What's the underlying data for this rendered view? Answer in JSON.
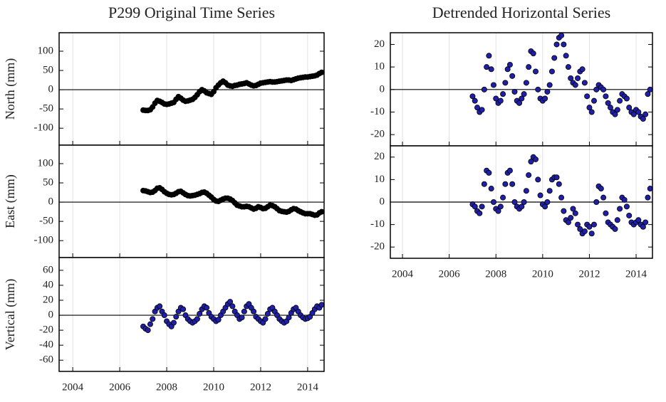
{
  "chart_data": [
    {
      "type": "scatter",
      "title": "P299 Original Time Series",
      "ylabel": "North (mm)",
      "x": [
        2007.0,
        2007.1,
        2007.2,
        2007.3,
        2007.4,
        2007.5,
        2007.6,
        2007.7,
        2007.8,
        2007.9,
        2008.0,
        2008.1,
        2008.2,
        2008.3,
        2008.4,
        2008.5,
        2008.6,
        2008.7,
        2008.8,
        2008.9,
        2009.0,
        2009.1,
        2009.2,
        2009.3,
        2009.4,
        2009.5,
        2009.6,
        2009.7,
        2009.8,
        2009.9,
        2010.0,
        2010.1,
        2010.2,
        2010.3,
        2010.4,
        2010.5,
        2010.6,
        2010.7,
        2010.8,
        2010.9,
        2011.0,
        2011.1,
        2011.2,
        2011.3,
        2011.4,
        2011.5,
        2011.6,
        2011.7,
        2011.8,
        2011.9,
        2012.0,
        2012.1,
        2012.2,
        2012.3,
        2012.4,
        2012.5,
        2012.6,
        2012.7,
        2012.8,
        2012.9,
        2013.0,
        2013.1,
        2013.2,
        2013.3,
        2013.4,
        2013.5,
        2013.6,
        2013.7,
        2013.8,
        2013.9,
        2014.0,
        2014.1,
        2014.2,
        2014.3,
        2014.4,
        2014.5,
        2014.6
      ],
      "series": [
        {
          "color": "#000000",
          "edgecolor": "#000000",
          "values": [
            -53,
            -54,
            -54,
            -52,
            -45,
            -35,
            -28,
            -30,
            -33,
            -37,
            -38,
            -37,
            -35,
            -33,
            -25,
            -18,
            -22,
            -27,
            -30,
            -29,
            -27,
            -25,
            -20,
            -13,
            -5,
            0,
            -3,
            -8,
            -10,
            -12,
            -5,
            5,
            12,
            18,
            22,
            18,
            12,
            10,
            9,
            11,
            12,
            14,
            15,
            16,
            18,
            15,
            12,
            10,
            11,
            14,
            17,
            18,
            19,
            20,
            21,
            20,
            20,
            21,
            22,
            23,
            24,
            25,
            25,
            24,
            26,
            28,
            30,
            31,
            32,
            33,
            33,
            34,
            35,
            36,
            38,
            42,
            45
          ]
        }
      ],
      "xlim": [
        2003.42,
        2014.7
      ],
      "xticks": [
        2004,
        2006,
        2008,
        2010,
        2012,
        2014
      ],
      "ylim": [
        -144,
        148
      ],
      "yticks": [
        -100,
        -50,
        0,
        50,
        100
      ],
      "grid": true
    },
    {
      "type": "scatter",
      "ylabel": "East (mm)",
      "x": [
        2007.0,
        2007.1,
        2007.2,
        2007.3,
        2007.4,
        2007.5,
        2007.6,
        2007.7,
        2007.8,
        2007.9,
        2008.0,
        2008.1,
        2008.2,
        2008.3,
        2008.4,
        2008.5,
        2008.6,
        2008.7,
        2008.8,
        2008.9,
        2009.0,
        2009.1,
        2009.2,
        2009.3,
        2009.4,
        2009.5,
        2009.6,
        2009.7,
        2009.8,
        2009.9,
        2010.0,
        2010.1,
        2010.2,
        2010.3,
        2010.4,
        2010.5,
        2010.6,
        2010.7,
        2010.8,
        2010.9,
        2011.0,
        2011.1,
        2011.2,
        2011.3,
        2011.4,
        2011.5,
        2011.6,
        2011.7,
        2011.8,
        2011.9,
        2012.0,
        2012.1,
        2012.2,
        2012.3,
        2012.4,
        2012.5,
        2012.6,
        2012.7,
        2012.8,
        2012.9,
        2013.0,
        2013.1,
        2013.2,
        2013.3,
        2013.4,
        2013.5,
        2013.6,
        2013.7,
        2013.8,
        2013.9,
        2014.0,
        2014.1,
        2014.2,
        2014.3,
        2014.4,
        2014.5,
        2014.6
      ],
      "series": [
        {
          "color": "#000000",
          "edgecolor": "#000000",
          "values": [
            30,
            29,
            27,
            25,
            26,
            30,
            36,
            37,
            33,
            27,
            23,
            20,
            19,
            20,
            23,
            27,
            28,
            24,
            20,
            17,
            16,
            17,
            18,
            20,
            22,
            25,
            26,
            23,
            18,
            13,
            7,
            3,
            2,
            5,
            8,
            10,
            10,
            8,
            4,
            -2,
            -8,
            -10,
            -12,
            -12,
            -11,
            -12,
            -15,
            -18,
            -16,
            -12,
            -14,
            -17,
            -16,
            -12,
            -8,
            -9,
            -12,
            -17,
            -22,
            -24,
            -25,
            -26,
            -24,
            -20,
            -17,
            -18,
            -22,
            -25,
            -28,
            -30,
            -30,
            -30,
            -32,
            -34,
            -33,
            -28,
            -25
          ]
        }
      ],
      "xlim": [
        2003.42,
        2014.7
      ],
      "xticks": [
        2004,
        2006,
        2008,
        2010,
        2012,
        2014
      ],
      "ylim": [
        -144,
        148
      ],
      "yticks": [
        -100,
        -50,
        0,
        50,
        100
      ],
      "grid": true
    },
    {
      "type": "scatter",
      "ylabel": "Vertical (mm)",
      "x": [
        2007.0,
        2007.1,
        2007.2,
        2007.3,
        2007.4,
        2007.5,
        2007.6,
        2007.7,
        2007.8,
        2007.9,
        2008.0,
        2008.1,
        2008.2,
        2008.3,
        2008.4,
        2008.5,
        2008.6,
        2008.7,
        2008.8,
        2008.9,
        2009.0,
        2009.1,
        2009.2,
        2009.3,
        2009.4,
        2009.5,
        2009.6,
        2009.7,
        2009.8,
        2009.9,
        2010.0,
        2010.1,
        2010.2,
        2010.3,
        2010.4,
        2010.5,
        2010.6,
        2010.7,
        2010.8,
        2010.9,
        2011.0,
        2011.1,
        2011.2,
        2011.3,
        2011.4,
        2011.5,
        2011.6,
        2011.7,
        2011.8,
        2011.9,
        2012.0,
        2012.1,
        2012.2,
        2012.3,
        2012.4,
        2012.5,
        2012.6,
        2012.7,
        2012.8,
        2012.9,
        2013.0,
        2013.1,
        2013.2,
        2013.3,
        2013.4,
        2013.5,
        2013.6,
        2013.7,
        2013.8,
        2013.9,
        2014.0,
        2014.1,
        2014.2,
        2014.3,
        2014.4,
        2014.5,
        2014.6
      ],
      "series": [
        {
          "color": "#1f1fa8",
          "edgecolor": "#000000",
          "values": [
            -15,
            -18,
            -20,
            -12,
            -5,
            5,
            10,
            12,
            5,
            0,
            -8,
            -12,
            -15,
            -10,
            -2,
            5,
            10,
            8,
            0,
            -5,
            -8,
            -10,
            -8,
            -5,
            2,
            8,
            12,
            10,
            3,
            -2,
            -5,
            -8,
            -6,
            0,
            5,
            10,
            15,
            18,
            12,
            5,
            0,
            -5,
            -3,
            5,
            12,
            15,
            10,
            5,
            -2,
            -5,
            -8,
            -10,
            -5,
            2,
            8,
            10,
            5,
            0,
            -5,
            -8,
            -10,
            -8,
            -3,
            3,
            8,
            10,
            5,
            0,
            -3,
            -5,
            -4,
            -2,
            3,
            8,
            12,
            10,
            14
          ]
        }
      ],
      "xlim": [
        2003.42,
        2014.7
      ],
      "xticks": [
        2004,
        2006,
        2008,
        2010,
        2012,
        2014
      ],
      "ylim": [
        -75,
        77
      ],
      "yticks": [
        -60,
        -40,
        -20,
        0,
        20,
        40,
        60
      ],
      "grid": true
    },
    {
      "type": "scatter",
      "title": "Detrended Horizontal Series",
      "x": [
        2007.0,
        2007.1,
        2007.2,
        2007.3,
        2007.4,
        2007.5,
        2007.6,
        2007.7,
        2007.8,
        2007.9,
        2008.0,
        2008.1,
        2008.2,
        2008.3,
        2008.4,
        2008.5,
        2008.6,
        2008.7,
        2008.8,
        2008.9,
        2009.0,
        2009.1,
        2009.2,
        2009.3,
        2009.4,
        2009.5,
        2009.6,
        2009.7,
        2009.8,
        2009.9,
        2010.0,
        2010.1,
        2010.2,
        2010.3,
        2010.4,
        2010.5,
        2010.6,
        2010.7,
        2010.8,
        2010.9,
        2011.0,
        2011.1,
        2011.2,
        2011.3,
        2011.4,
        2011.5,
        2011.6,
        2011.7,
        2011.8,
        2011.9,
        2012.0,
        2012.1,
        2012.2,
        2012.3,
        2012.4,
        2012.5,
        2012.6,
        2012.7,
        2012.8,
        2012.9,
        2013.0,
        2013.1,
        2013.2,
        2013.3,
        2013.4,
        2013.5,
        2013.6,
        2013.7,
        2013.8,
        2013.9,
        2014.0,
        2014.1,
        2014.2,
        2014.3,
        2014.4,
        2014.5,
        2014.6
      ],
      "series": [
        {
          "color": "#1f1fa8",
          "edgecolor": "#000000",
          "values": [
            -3,
            -5,
            -8,
            -10,
            -9,
            0,
            10,
            15,
            9,
            2,
            -4,
            -6,
            -5,
            -2,
            3,
            9,
            11,
            6,
            -1,
            -5,
            -6,
            -4,
            -2,
            3,
            10,
            17,
            16,
            8,
            0,
            -4,
            -5,
            -4,
            -1,
            2,
            8,
            14,
            20,
            23,
            24,
            20,
            15,
            10,
            5,
            3,
            2,
            5,
            8,
            9,
            3,
            -3,
            -8,
            -10,
            -5,
            0,
            2,
            1,
            0,
            -3,
            -6,
            -8,
            -10,
            -11,
            -9,
            -5,
            -2,
            -3,
            -4,
            -8,
            -10,
            -11,
            -9,
            -10,
            -12,
            -13,
            -11,
            -2,
            0
          ]
        }
      ],
      "xlim": [
        2003.48,
        2014.7
      ],
      "xticks": [
        2004,
        2006,
        2008,
        2010,
        2012,
        2014
      ],
      "ylim": [
        -25,
        25.2
      ],
      "yticks": [
        -20,
        -10,
        0,
        10,
        20
      ],
      "grid": true
    },
    {
      "type": "scatter",
      "x": [
        2007.0,
        2007.1,
        2007.2,
        2007.3,
        2007.4,
        2007.5,
        2007.6,
        2007.7,
        2007.8,
        2007.9,
        2008.0,
        2008.1,
        2008.2,
        2008.3,
        2008.4,
        2008.5,
        2008.6,
        2008.7,
        2008.8,
        2008.9,
        2009.0,
        2009.1,
        2009.2,
        2009.3,
        2009.4,
        2009.5,
        2009.6,
        2009.7,
        2009.8,
        2009.9,
        2010.0,
        2010.1,
        2010.2,
        2010.3,
        2010.4,
        2010.5,
        2010.6,
        2010.7,
        2010.8,
        2010.9,
        2011.0,
        2011.1,
        2011.2,
        2011.3,
        2011.4,
        2011.5,
        2011.6,
        2011.7,
        2011.8,
        2011.9,
        2012.0,
        2012.1,
        2012.2,
        2012.3,
        2012.4,
        2012.5,
        2012.6,
        2012.7,
        2012.8,
        2012.9,
        2013.0,
        2013.1,
        2013.2,
        2013.3,
        2013.4,
        2013.5,
        2013.6,
        2013.7,
        2013.8,
        2013.9,
        2014.0,
        2014.1,
        2014.2,
        2014.3,
        2014.4,
        2014.5,
        2014.6
      ],
      "series": [
        {
          "color": "#1f1fa8",
          "edgecolor": "#000000",
          "values": [
            -1,
            -2,
            -4,
            -5,
            -2,
            8,
            14,
            13,
            6,
            0,
            -3,
            -4,
            -2,
            2,
            8,
            13,
            14,
            8,
            0,
            -2,
            -3,
            -2,
            0,
            5,
            12,
            18,
            20,
            19,
            10,
            3,
            -1,
            -2,
            0,
            5,
            10,
            11,
            11,
            8,
            2,
            -4,
            -8,
            -9,
            -7,
            -3,
            -5,
            -10,
            -12,
            -14,
            -13,
            -10,
            -11,
            -14,
            -10,
            0,
            7,
            6,
            2,
            -5,
            -9,
            -10,
            -11,
            -12,
            -8,
            -3,
            2,
            1,
            -2,
            -6,
            -9,
            -10,
            -9,
            -8,
            -10,
            -11,
            -9,
            2,
            6
          ]
        }
      ],
      "xlim": [
        2003.48,
        2014.7
      ],
      "xticks": [
        2004,
        2006,
        2008,
        2010,
        2012,
        2014
      ],
      "ylim": [
        -25,
        25
      ],
      "yticks": [
        -20,
        -10,
        0,
        10,
        20
      ],
      "grid": true
    }
  ]
}
